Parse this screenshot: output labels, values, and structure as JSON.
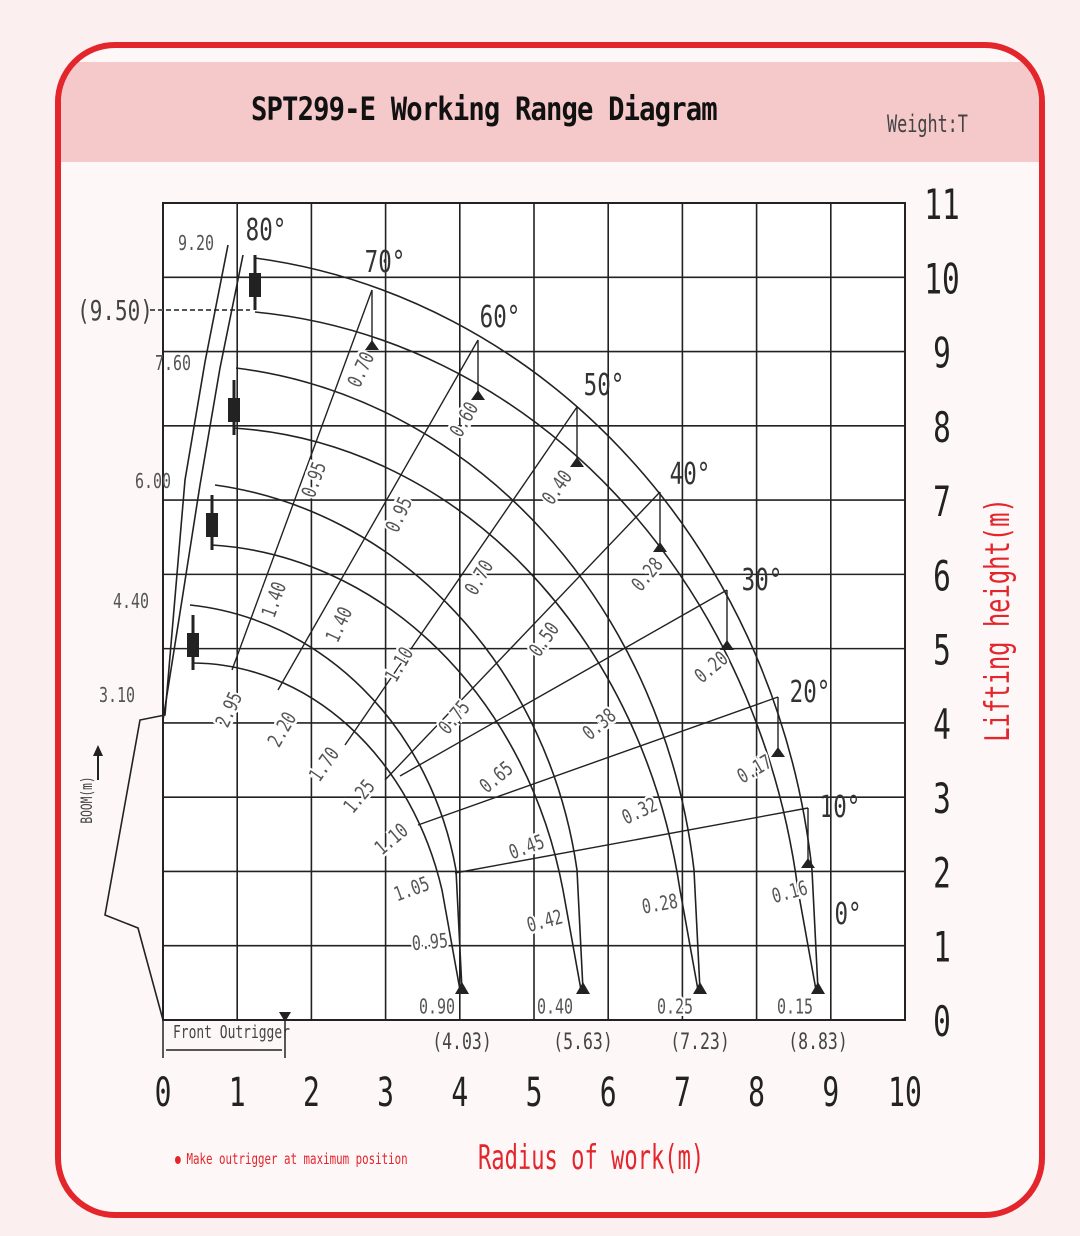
{
  "header": {
    "title": "SPT299-E  Working Range Diagram",
    "unit": "Weight:T"
  },
  "colors": {
    "accent": "#e3262c",
    "header_band": "#f5c8c9",
    "line": "#222222"
  },
  "axes": {
    "x_label": "Radius of work(m)",
    "y_label": "Lifting height(m)",
    "x_ticks": [
      "0",
      "1",
      "2",
      "3",
      "4",
      "5",
      "6",
      "7",
      "8",
      "9",
      "10"
    ],
    "y_ticks": [
      "0",
      "1",
      "2",
      "3",
      "4",
      "5",
      "6",
      "7",
      "8",
      "9",
      "10",
      "11"
    ],
    "x_range": [
      0,
      10
    ],
    "y_range": [
      0,
      11
    ]
  },
  "boom": {
    "label": "BOOM(m)",
    "lengths": [
      "9.20",
      "7.60",
      "6.00",
      "4.40",
      "3.10"
    ],
    "max_height": "(9.50)"
  },
  "angles": [
    "80°",
    "70°",
    "60°",
    "50°",
    "40°",
    "30°",
    "20°",
    "10°",
    "0°"
  ],
  "max_radius": [
    "(4.03)",
    "(5.63)",
    "(7.23)",
    "(8.83)"
  ],
  "loads": {
    "arc_8_83": [
      "0.70",
      "0.60",
      "0.40",
      "0.28",
      "0.20",
      "0.17",
      "0.16",
      "0.15"
    ],
    "arc_7_23": [
      "0.95",
      "0.95",
      "0.70",
      "0.50",
      "0.38",
      "0.32",
      "0.28",
      "0.25"
    ],
    "arc_5_63": [
      "1.40",
      "1.40",
      "1.10",
      "0.75",
      "0.65",
      "0.45",
      "0.42",
      "0.40"
    ],
    "arc_4_03": [
      "2.95",
      "2.20",
      "1.70",
      "1.25",
      "1.10",
      "1.05",
      "0.95",
      "0.90"
    ]
  },
  "front_outrigger": "Front Outrigger",
  "note": "Make outrigger at maximum position"
}
